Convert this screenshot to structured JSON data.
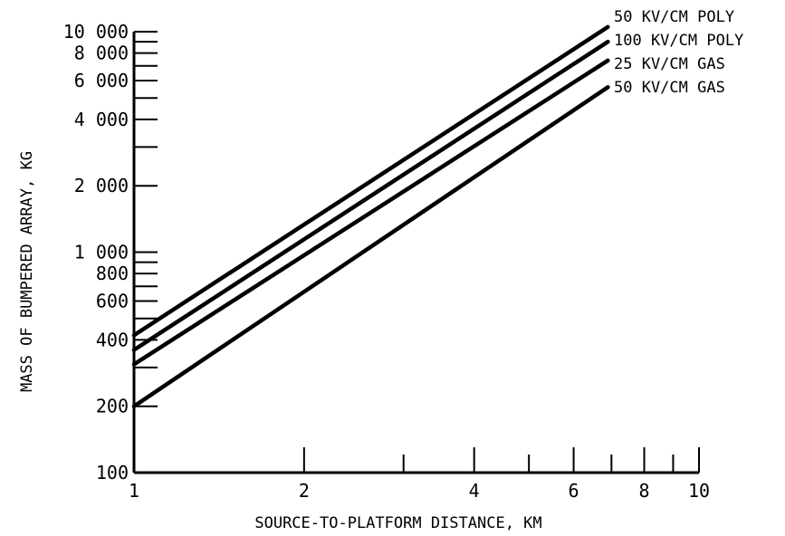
{
  "chart_data": {
    "type": "line",
    "title": "",
    "xlabel": "SOURCE-TO-PLATFORM DISTANCE, KM",
    "ylabel": "MASS OF BUMPERED ARRAY, KG",
    "x_scale": "log",
    "y_scale": "log",
    "xlim": [
      1,
      10
    ],
    "ylim": [
      100,
      10000
    ],
    "x_ticks": [
      1,
      2,
      3,
      4,
      5,
      6,
      7,
      8,
      9,
      10
    ],
    "x_tick_labels": [
      {
        "value": 1,
        "label": "1"
      },
      {
        "value": 2,
        "label": "2"
      },
      {
        "value": 4,
        "label": "4"
      },
      {
        "value": 6,
        "label": "6"
      },
      {
        "value": 8,
        "label": "8"
      },
      {
        "value": 10,
        "label": "10"
      }
    ],
    "y_ticks": [
      100,
      200,
      300,
      400,
      500,
      600,
      700,
      800,
      900,
      1000,
      2000,
      3000,
      4000,
      5000,
      6000,
      7000,
      8000,
      9000,
      10000
    ],
    "y_tick_labels": [
      {
        "value": 100,
        "label": "100"
      },
      {
        "value": 200,
        "label": "200"
      },
      {
        "value": 400,
        "label": "400"
      },
      {
        "value": 600,
        "label": "600"
      },
      {
        "value": 800,
        "label": "800"
      },
      {
        "value": 1000,
        "label": "1 000"
      },
      {
        "value": 2000,
        "label": "2 000"
      },
      {
        "value": 4000,
        "label": "4 000"
      },
      {
        "value": 6000,
        "label": "6 000"
      },
      {
        "value": 8000,
        "label": "8 000"
      },
      {
        "value": 10000,
        "label": "10 000"
      }
    ],
    "grid": false,
    "legend": "labels at right end of lines",
    "series": [
      {
        "name": "50 KV/CM POLY",
        "x": [
          1,
          6.9
        ],
        "y": [
          420,
          10500
        ]
      },
      {
        "name": "100 KV/CM POLY",
        "x": [
          1,
          6.9
        ],
        "y": [
          360,
          9000
        ]
      },
      {
        "name": "25 KV/CM GAS",
        "x": [
          1,
          6.9
        ],
        "y": [
          310,
          7400
        ]
      },
      {
        "name": "50 KV/CM GAS",
        "x": [
          1,
          6.9
        ],
        "y": [
          200,
          5600
        ]
      }
    ]
  }
}
